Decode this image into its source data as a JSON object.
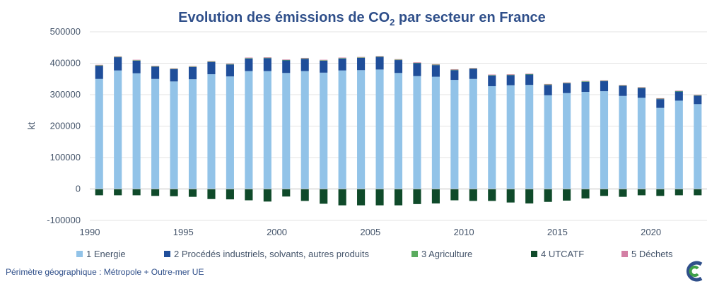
{
  "chart_data": {
    "type": "bar",
    "stacked": true,
    "title": "Evolution des émissions de CO",
    "title_sub": "2",
    "title_after": " par secteur en France",
    "ylabel": "kt",
    "xlabel": "",
    "ylim": [
      -100000,
      500000
    ],
    "yticks": [
      -100000,
      0,
      100000,
      200000,
      300000,
      400000,
      500000
    ],
    "ytick_labels": [
      "-100000",
      "0",
      "100000",
      "200000",
      "300000",
      "400000",
      "500000"
    ],
    "xtick_labels": [
      "1990",
      "1995",
      "2000",
      "2005",
      "2010",
      "2015",
      "2020"
    ],
    "grid": true,
    "legend_position": "bottom",
    "categories": [
      "1990",
      "1991",
      "1992",
      "1993",
      "1994",
      "1995",
      "1996",
      "1997",
      "1998",
      "1999",
      "2000",
      "2001",
      "2002",
      "2003",
      "2004",
      "2005",
      "2006",
      "2007",
      "2008",
      "2009",
      "2010",
      "2011",
      "2012",
      "2013",
      "2014",
      "2015",
      "2016",
      "2017",
      "2018",
      "2019",
      "2020",
      "2021",
      "2022"
    ],
    "series": [
      {
        "name": "1 Energie",
        "color": "#92c3e8",
        "values": [
          350000,
          377000,
          368000,
          350000,
          342000,
          349000,
          365000,
          358000,
          375000,
          375000,
          369000,
          375000,
          370000,
          377000,
          378000,
          380000,
          369000,
          359000,
          357000,
          347000,
          350000,
          327000,
          330000,
          331000,
          298000,
          305000,
          309000,
          311000,
          296000,
          290000,
          258000,
          281000,
          270000
        ]
      },
      {
        "name": "2  Procédés industriels, solvants, autres produits",
        "color": "#1f4e9a",
        "values": [
          42000,
          42000,
          40000,
          39000,
          39000,
          39000,
          39000,
          38000,
          40000,
          41000,
          40000,
          39000,
          38000,
          38000,
          39000,
          40000,
          41000,
          41000,
          37000,
          31000,
          32000,
          34000,
          32000,
          33000,
          33000,
          31000,
          32000,
          32000,
          32000,
          31000,
          28000,
          29000,
          27000
        ]
      },
      {
        "name": "3  Agriculture",
        "color": "#5aab5e",
        "values": [
          1500,
          1500,
          1500,
          1500,
          1500,
          1500,
          1500,
          1500,
          1500,
          1500,
          1500,
          1500,
          1500,
          1500,
          1500,
          1500,
          1500,
          1500,
          1500,
          1500,
          1500,
          1500,
          1500,
          1500,
          1500,
          1500,
          1500,
          1500,
          1500,
          1500,
          1500,
          1500,
          1500
        ]
      },
      {
        "name": "4  UTCATF",
        "color": "#0f4a2a",
        "values": [
          -20000,
          -20000,
          -20000,
          -22000,
          -23000,
          -25000,
          -32000,
          -33000,
          -36000,
          -40000,
          -24000,
          -38000,
          -47000,
          -52000,
          -52000,
          -52000,
          -52000,
          -48000,
          -46000,
          -36000,
          -38000,
          -38000,
          -43000,
          -46000,
          -41000,
          -37000,
          -30000,
          -22000,
          -25000,
          -20000,
          -22000,
          -20000,
          -20000
        ]
      },
      {
        "name": "5  Déchets",
        "color": "#d37fa4",
        "values": [
          1500,
          1500,
          1500,
          1500,
          1500,
          1500,
          1500,
          1500,
          1500,
          1500,
          1500,
          1500,
          1500,
          1500,
          1500,
          1500,
          1500,
          1500,
          1500,
          1500,
          1500,
          1500,
          1500,
          1500,
          1500,
          1500,
          1500,
          1500,
          1500,
          1500,
          1500,
          1500,
          1500
        ]
      }
    ]
  },
  "footnote": "Périmètre géographique : Métropole + Outre-mer UE",
  "logo": {
    "name": "citepa-logo",
    "colors": [
      "#2f4f8a",
      "#3fa048"
    ]
  }
}
